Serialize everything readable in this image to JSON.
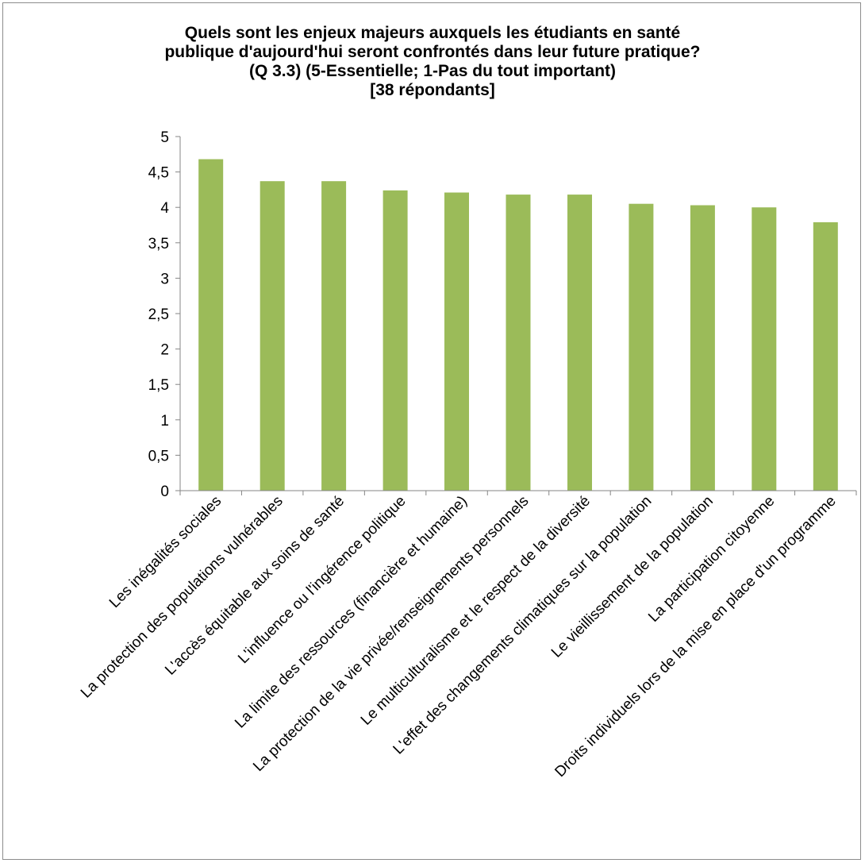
{
  "chart_data": {
    "type": "bar",
    "title_lines": [
      "Quels sont les enjeux majeurs auxquels les étudiants en santé",
      "publique d'aujourd'hui seront confrontés dans leur future pratique?",
      "(Q 3.3) (5-Essentielle; 1-Pas du tout important)",
      "[38 répondants]"
    ],
    "categories": [
      "Les inégalités sociales",
      "La protection des populations vulnérables",
      "L'accès équitable aux soins de santé",
      "L'influence ou l'ingérence politique",
      "La limite des ressources (financière et humaine)",
      "La protection de la vie privée/renseignements personnels",
      "Le multiculturalisme et le respect de la diversité",
      "L'effet des changements climatiques sur la population",
      "Le vieillissement de la population",
      "La participation citoyenne",
      "Droits individuels lors de la mise en place d'un programme"
    ],
    "values": [
      4.68,
      4.37,
      4.37,
      4.24,
      4.21,
      4.18,
      4.18,
      4.05,
      4.03,
      4.0,
      3.79
    ],
    "ylim": [
      0,
      5
    ],
    "ytick_values": [
      0,
      0.5,
      1,
      1.5,
      2,
      2.5,
      3,
      3.5,
      4,
      4.5,
      5
    ],
    "ytick_labels": [
      "0",
      "0,5",
      "1",
      "1,5",
      "2",
      "2,5",
      "3",
      "3,5",
      "4",
      "4,5",
      "5"
    ],
    "grid": false,
    "legend": "none",
    "colors": {
      "bar": "#9bbb59",
      "axis": "#868686",
      "text": "#000000"
    }
  }
}
